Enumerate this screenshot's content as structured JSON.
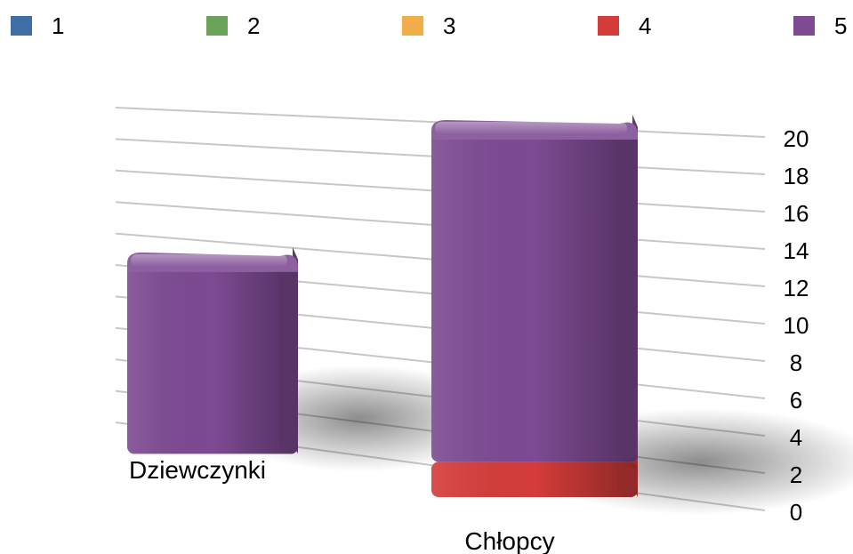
{
  "chart_data": {
    "type": "bar",
    "stacked": true,
    "categories": [
      "Dziewczynki",
      "Chłopcy"
    ],
    "series": [
      {
        "name": "1",
        "color": "#3f6fa4",
        "values": [
          0,
          0
        ]
      },
      {
        "name": "2",
        "color": "#6aa25a",
        "values": [
          0,
          0
        ]
      },
      {
        "name": "3",
        "color": "#f0ad4a",
        "values": [
          0,
          0
        ]
      },
      {
        "name": "4",
        "color": "#d43c3a",
        "values": [
          0,
          2
        ]
      },
      {
        "name": "5",
        "color": "#7d4a93",
        "values": [
          12,
          19
        ]
      }
    ],
    "y_ticks": [
      "0",
      "2",
      "4",
      "6",
      "8",
      "10",
      "12",
      "14",
      "16",
      "18",
      "20"
    ],
    "ylim": [
      0,
      20
    ],
    "grid": true,
    "legend_position": "top",
    "title": "",
    "xlabel": "",
    "ylabel": ""
  }
}
